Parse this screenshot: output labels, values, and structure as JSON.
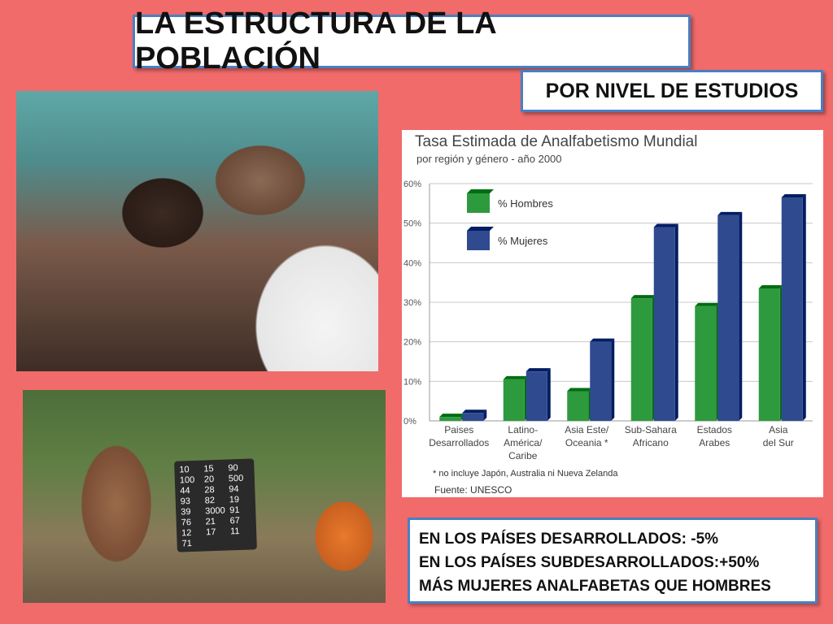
{
  "slide": {
    "title": "LA ESTRUCTURA DE LA POBLACIÓN",
    "subtitle": "POR NIVEL DE ESTUDIOS"
  },
  "facts": [
    "EN LOS PAÍSES DESARROLLADOS: -5%",
    "EN LOS PAÍSES SUBDESARROLLADOS:+50%",
    "MÁS MUJERES ANALFABETAS QUE HOMBRES"
  ],
  "board_numbers": "10 15 90 100 20 500 44 28 94 93 82 19 39 3000 91 76 21 67 12 17 11 71",
  "chart_data": {
    "type": "bar",
    "title": "Tasa Estimada de Analfabetismo Mundial",
    "subtitle": "por región y género - año 2000",
    "categories": [
      [
        "Paises",
        "Desarrollados"
      ],
      [
        "Latino-",
        "América/",
        "Caribe"
      ],
      [
        "Asia Este/",
        "Oceania *"
      ],
      [
        "Sub-Sahara",
        "Africano"
      ],
      [
        "Estados",
        "Arabes"
      ],
      [
        "Asia",
        "del Sur"
      ]
    ],
    "series": [
      {
        "name": "% Hombres",
        "color": "#2e9a3e",
        "values": [
          1,
          10.5,
          7.5,
          31,
          29,
          33.5
        ]
      },
      {
        "name": "% Mujeres",
        "color": "#2f4a8f",
        "values": [
          2,
          12.5,
          20,
          49,
          52,
          56.5
        ]
      }
    ],
    "ylim": [
      0,
      60
    ],
    "yticks": [
      "0%",
      "10%",
      "20%",
      "30%",
      "40%",
      "50%",
      "60%"
    ],
    "grid": true,
    "legend_position": "top-left",
    "footnote": "* no incluye Japón, Australia ni Nueva Zelanda",
    "source": "Fuente:  UNESCO"
  }
}
